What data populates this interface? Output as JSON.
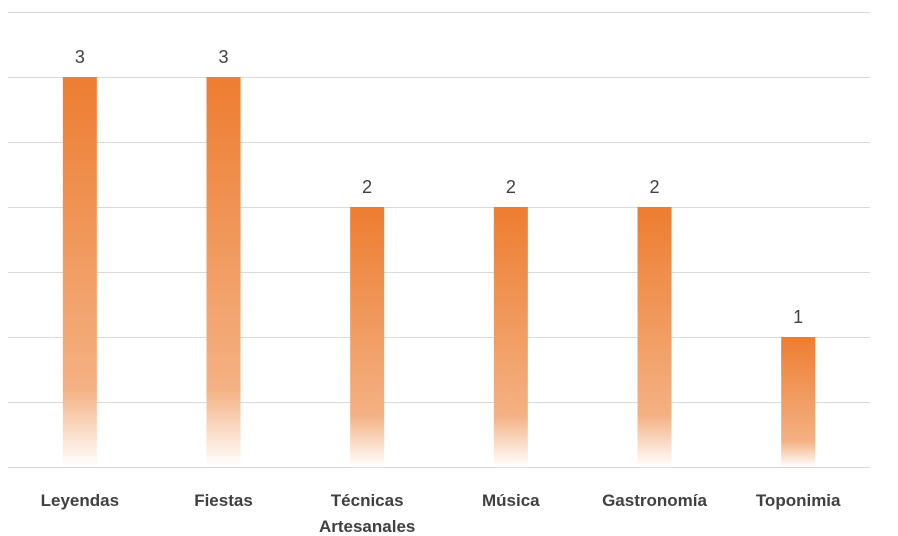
{
  "chart_data": {
    "type": "bar",
    "categories": [
      "Leyendas",
      "Fiestas",
      "Técnicas Artesanales",
      "Música",
      "Gastronomía",
      "Toponimia"
    ],
    "values": [
      3,
      3,
      2,
      2,
      2,
      1
    ],
    "data_labels": [
      "3",
      "3",
      "2",
      "2",
      "2",
      "1"
    ],
    "ylim": [
      0,
      3.5
    ],
    "grid": true,
    "legend": "none",
    "colors": {
      "bar_top": "#ED7D31",
      "bar_bottom": "#FFFFFF"
    }
  }
}
